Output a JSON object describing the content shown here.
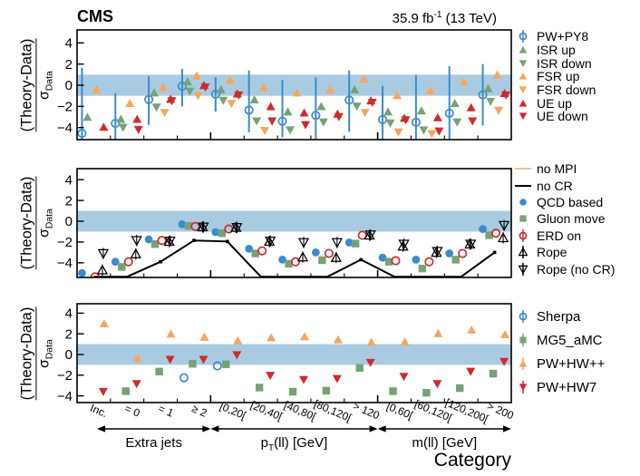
{
  "header": {
    "experiment": "CMS",
    "lumi_prefix": "35.9 fb",
    "lumi_sup": "-1",
    "lumi_suffix": " (13 TeV)"
  },
  "chart_data": {
    "type": "scatter",
    "xlabel": "Category",
    "ylabel_numerator": "(Theory-Data)",
    "ylabel_denominator_symbol": "σ",
    "ylabel_denominator_sub": "Data",
    "band": [
      -1,
      1
    ],
    "band_color": "#a9cbe2",
    "yticks": [
      -4,
      -2,
      0,
      2,
      4
    ],
    "categories": [
      "Inc.",
      "= 0",
      "= 1",
      "≥ 2",
      "[0,20[",
      "[20,40[",
      "[40,80[",
      "[80,120[",
      "> 120",
      "[0,60[",
      "[60,120[",
      "[120,200[",
      "> 200"
    ],
    "groups": [
      {
        "label": "Extra jets",
        "from": 0,
        "to": 3
      },
      {
        "label": "p_T(ll) [GeV]",
        "label_pre": "p",
        "label_sub": "T",
        "label_post": "(ll) [GeV]",
        "from": 4,
        "to": 8
      },
      {
        "label": "m(ll) [GeV]",
        "from": 9,
        "to": 12
      }
    ],
    "colors": {
      "blue": "#3a8ccc",
      "green": "#76a275",
      "orange": "#f9a55c",
      "light_orange": "#fbbf85",
      "red": "#d12a2a",
      "black": "#000000"
    },
    "panels": [
      {
        "series": [
          {
            "name": "PW+PY8",
            "marker": "circle-open",
            "color": "#3a8ccc",
            "legend_bar": true,
            "values": [
              -4.55,
              -3.6,
              -1.35,
              -0.1,
              -0.85,
              -2.35,
              -3.4,
              -2.85,
              -1.4,
              -3.25,
              -3.5,
              -2.65,
              -0.9
            ],
            "err_hi": [
              1.65,
              -0.75,
              0.85,
              1.55,
              0.75,
              1.4,
              0.5,
              0.75,
              1.4,
              -0.05,
              0.95,
              1.8,
              2.0
            ],
            "err_lo": [
              -7,
              -7,
              -3.75,
              -2.0,
              -2.5,
              -4.45,
              -4.9,
              -7,
              -4.4,
              -7,
              -7,
              -7,
              -3.8
            ]
          },
          {
            "name": "ISR up",
            "marker": "tri-up",
            "color": "#76a275",
            "values": [
              -3.0,
              -3.2,
              -0.7,
              0.35,
              -0.4,
              -1.35,
              -2.5,
              -2.0,
              -0.4,
              -2.5,
              -2.4,
              -1.7,
              -0.3
            ]
          },
          {
            "name": "ISR down",
            "marker": "tri-down",
            "color": "#76a275",
            "values": [
              null,
              -4.0,
              -2.1,
              -0.6,
              -1.45,
              -3.4,
              -4.25,
              -3.5,
              -2.0,
              -3.6,
              -4.25,
              -3.5,
              -1.55
            ]
          },
          {
            "name": "FSR up",
            "marker": "tri-up",
            "color": "#f9a55c",
            "values": [
              -0.4,
              -1.7,
              -0.2,
              0.9,
              0.5,
              -0.2,
              -0.7,
              -0.4,
              0.6,
              -0.95,
              -0.5,
              0.35,
              1.0
            ]
          },
          {
            "name": "FSR down",
            "marker": "tri-down",
            "color": "#f9a55c",
            "values": [
              null,
              null,
              -2.6,
              -1.0,
              -1.75,
              -4.3,
              null,
              null,
              -2.6,
              -4.45,
              -4.6,
              null,
              -2.4
            ]
          },
          {
            "name": "UE up",
            "marker": "tri-up",
            "color": "#d12a2a",
            "values": [
              -3.95,
              -3.2,
              -1.3,
              0.0,
              -0.8,
              -2.0,
              -2.6,
              -2.7,
              -1.45,
              -3.1,
              -3.05,
              -2.1,
              -0.75
            ]
          },
          {
            "name": "UE down",
            "marker": "tri-down",
            "color": "#d12a2a",
            "values": [
              null,
              -4.2,
              -1.5,
              -0.2,
              -0.95,
              -3.4,
              -3.75,
              -3.0,
              -1.65,
              -3.3,
              -4.35,
              -3.4,
              -0.95
            ]
          }
        ]
      },
      {
        "lines": [
          {
            "name": "no MPI",
            "color": "#fbbf85",
            "values": [
              null,
              null,
              null,
              null,
              null,
              null,
              null,
              null,
              null,
              null,
              null,
              null,
              null
            ]
          },
          {
            "name": "no CR",
            "color": "#000000",
            "values": [
              null,
              null,
              -3.9,
              -1.85,
              -1.95,
              null,
              null,
              null,
              -3.7,
              null,
              null,
              null,
              -3.0
            ]
          }
        ],
        "series": [
          {
            "name": "QCD based",
            "marker": "circle",
            "color": "#3a8ccc",
            "values": [
              -5.0,
              -3.9,
              -1.75,
              -0.3,
              -1.05,
              -2.65,
              -3.7,
              -3.0,
              -2.05,
              -3.5,
              -3.7,
              -3.1,
              -0.75
            ]
          },
          {
            "name": "Gluon move",
            "marker": "square",
            "color": "#76a275",
            "values": [
              null,
              -4.4,
              -2.2,
              -0.45,
              -1.15,
              -3.1,
              -4.1,
              -3.75,
              -2.15,
              -3.9,
              -4.55,
              -3.7,
              -1.35
            ]
          },
          {
            "name": "ERD on",
            "marker": "circle-open",
            "color": "#d12a2a",
            "legend_bar": true,
            "values": [
              -5.35,
              -3.9,
              -1.85,
              -0.5,
              -0.75,
              -2.85,
              -3.9,
              -3.1,
              -1.35,
              -3.8,
              -3.9,
              -3.1,
              -1.15
            ]
          },
          {
            "name": "Rope",
            "marker": "tri-up-open",
            "color": "#000000",
            "legend_bar": true,
            "values": [
              -4.7,
              -3.15,
              -1.95,
              -0.55,
              -0.6,
              -1.95,
              -3.45,
              -3.5,
              -1.35,
              -2.4,
              -3.0,
              -2.2,
              -1.6
            ]
          },
          {
            "name": "Rope (no CR)",
            "marker": "tri-down-open",
            "color": "#000000",
            "legend_bar": true,
            "values": [
              -3.1,
              -1.85,
              -1.9,
              -0.55,
              -0.6,
              -1.9,
              -2.05,
              -2.05,
              -1.3,
              -2.2,
              -2.9,
              -2.2,
              -0.4
            ]
          }
        ]
      },
      {
        "series": [
          {
            "name": "Sherpa",
            "marker": "circle-open",
            "color": "#3a8ccc",
            "legend_bar": true,
            "values": [
              null,
              null,
              null,
              -2.25,
              -1.1,
              null,
              null,
              null,
              null,
              null,
              null,
              null,
              null
            ]
          },
          {
            "name": "MG5_aMC",
            "marker": "square",
            "color": "#76a275",
            "legend_bar": true,
            "values": [
              null,
              -3.55,
              -1.65,
              -0.9,
              -0.95,
              -3.2,
              -3.6,
              -3.5,
              -1.3,
              -3.55,
              -3.7,
              -3.25,
              -1.85
            ]
          },
          {
            "name": "PW+HW++",
            "marker": "tri-up",
            "color": "#f9a55c",
            "legend_bar": true,
            "values": [
              3.0,
              -0.35,
              2.0,
              1.7,
              1.35,
              1.65,
              1.75,
              1.45,
              1.2,
              1.25,
              2.05,
              2.4,
              1.95
            ]
          },
          {
            "name": "PW+HW7",
            "marker": "tri-down",
            "color": "#d12a2a",
            "legend_bar": true,
            "values": [
              -3.6,
              -2.85,
              -0.5,
              -0.5,
              -0.05,
              -2.05,
              -2.45,
              -2.35,
              -0.8,
              -2.15,
              -2.85,
              -1.65,
              -0.7
            ]
          }
        ]
      }
    ]
  }
}
